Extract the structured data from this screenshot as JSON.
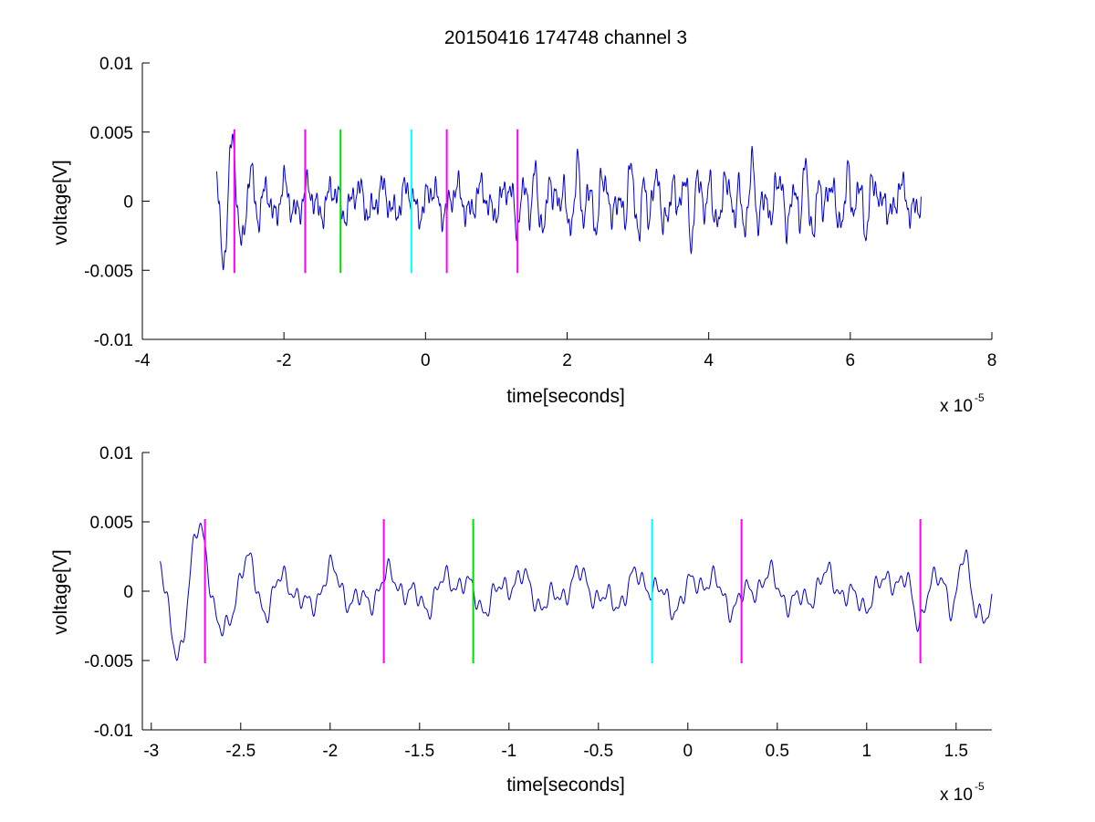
{
  "chart_data": [
    {
      "type": "line",
      "title": "20150416 174748 channel 3",
      "xlabel": "time[seconds]",
      "ylabel": "voltage[V]",
      "x_multiplier": "x 10",
      "x_exponent": "-5",
      "xlim": [
        -4,
        8
      ],
      "ylim": [
        -0.01,
        0.01
      ],
      "xticks": [
        -4,
        -2,
        0,
        2,
        4,
        6,
        8
      ],
      "xtick_labels": [
        "-4",
        "-2",
        "0",
        "2",
        "4",
        "6",
        "8"
      ],
      "yticks": [
        -0.01,
        -0.005,
        0,
        0.005,
        0.01
      ],
      "ytick_labels": [
        "-0.01",
        "-0.005",
        "0",
        "0.005",
        "0.01"
      ],
      "series_color": "#0000cc",
      "signal_range": [
        -2.95,
        7.0
      ],
      "markers": [
        {
          "x": -2.7,
          "color": "#ff00ff"
        },
        {
          "x": -1.7,
          "color": "#ff00ff"
        },
        {
          "x": -1.2,
          "color": "#00dd00"
        },
        {
          "x": -0.2,
          "color": "#00ffff"
        },
        {
          "x": 0.3,
          "color": "#ff00ff"
        },
        {
          "x": 1.3,
          "color": "#ff00ff"
        }
      ],
      "marker_range": [
        -0.0052,
        0.0052
      ]
    },
    {
      "type": "line",
      "xlabel": "time[seconds]",
      "ylabel": "voltage[V]",
      "x_multiplier": "x 10",
      "x_exponent": "-5",
      "xlim": [
        -3.05,
        1.7
      ],
      "ylim": [
        -0.01,
        0.01
      ],
      "xticks": [
        -3,
        -2.5,
        -2,
        -1.5,
        -1,
        -0.5,
        0,
        0.5,
        1,
        1.5
      ],
      "xtick_labels": [
        "-3",
        "-2.5",
        "-2",
        "-1.5",
        "-1",
        "-0.5",
        "0",
        "0.5",
        "1",
        "1.5"
      ],
      "yticks": [
        -0.01,
        -0.005,
        0,
        0.005,
        0.01
      ],
      "ytick_labels": [
        "-0.01",
        "-0.005",
        "0",
        "0.005",
        "0.01"
      ],
      "series_color": "#0000cc",
      "signal_range": [
        -2.95,
        1.7
      ],
      "markers": [
        {
          "x": -2.7,
          "color": "#ff00ff"
        },
        {
          "x": -1.7,
          "color": "#ff00ff"
        },
        {
          "x": -1.2,
          "color": "#00dd00"
        },
        {
          "x": -0.2,
          "color": "#00ffff"
        },
        {
          "x": 0.3,
          "color": "#ff00ff"
        },
        {
          "x": 1.3,
          "color": "#ff00ff"
        }
      ],
      "marker_range": [
        -0.0052,
        0.0052
      ]
    }
  ]
}
